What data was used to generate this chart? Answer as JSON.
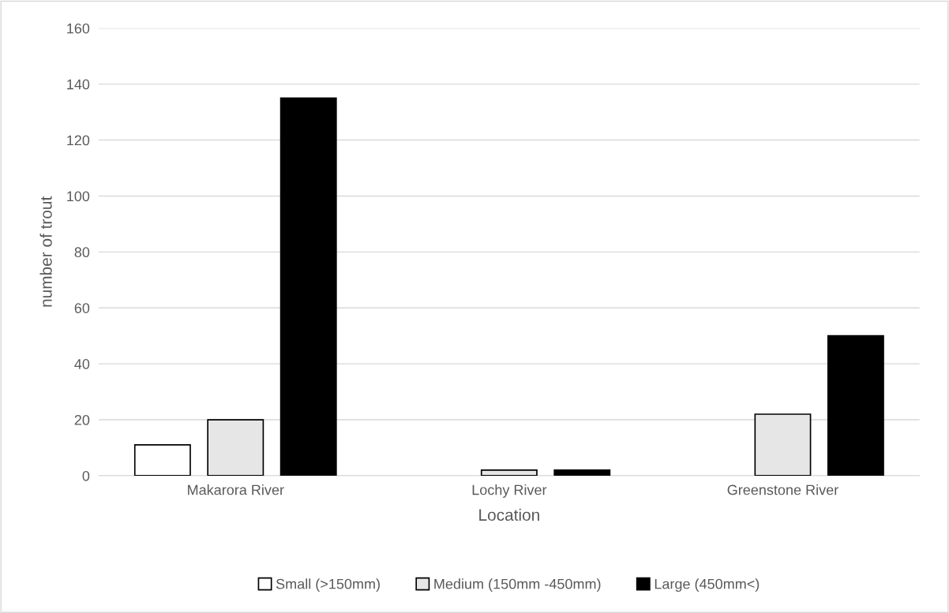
{
  "chart_data": {
    "type": "bar",
    "xlabel": "Location",
    "ylabel": "number of trout",
    "categories": [
      "Makarora River",
      "Lochy River",
      "Greenstone River"
    ],
    "series": [
      {
        "name": "Small (>150mm)",
        "color": "#ffffff",
        "values": [
          11,
          null,
          null
        ]
      },
      {
        "name": "Medium (150mm -450mm)",
        "color": "#e7e6e6",
        "values": [
          20,
          2,
          22
        ]
      },
      {
        "name": "Large (450mm<)",
        "color": "#000000",
        "values": [
          135,
          2,
          50
        ]
      }
    ],
    "ylim": [
      0,
      160
    ],
    "yticks": [
      0,
      20,
      40,
      60,
      80,
      100,
      120,
      140,
      160
    ],
    "grid": "y",
    "legend": "bottom"
  }
}
